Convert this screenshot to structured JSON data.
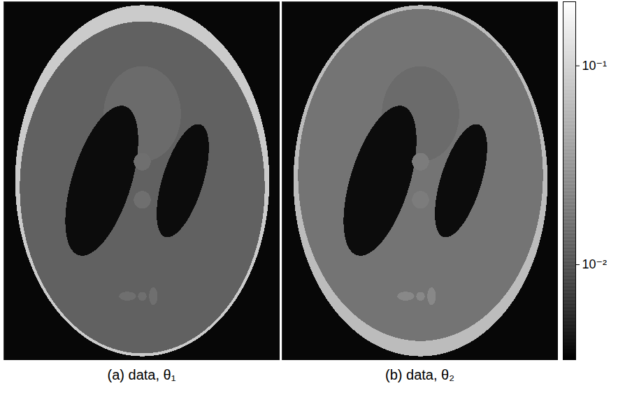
{
  "chart_data": {
    "type": "heatmap",
    "tick_labels": false,
    "panels": [
      {
        "caption": "(a) data, θ₁",
        "xlim": [
          -0.75,
          0.75
        ],
        "ylim": [
          -0.94,
          0.94
        ],
        "background": 0.0037,
        "ellipses": [
          {
            "cx": 0,
            "cy": 0,
            "rx": 0.69,
            "ry": 0.92,
            "angle": 0,
            "value": 0.09
          },
          {
            "cx": 0,
            "cy": -0.035,
            "rx": 0.665,
            "ry": 0.87,
            "angle": 0,
            "value": 0.016
          },
          {
            "cx": 0,
            "cy": 0.35,
            "rx": 0.21,
            "ry": 0.25,
            "angle": 0,
            "value": 0.019
          },
          {
            "cx": 0.22,
            "cy": 0,
            "rx": 0.11,
            "ry": 0.31,
            "angle": -18,
            "value": 0.004
          },
          {
            "cx": -0.22,
            "cy": 0,
            "rx": 0.16,
            "ry": 0.41,
            "angle": -18,
            "value": 0.004
          },
          {
            "cx": 0,
            "cy": 0.1,
            "rx": 0.046,
            "ry": 0.046,
            "angle": 0,
            "value": 0.02
          },
          {
            "cx": 0,
            "cy": -0.1,
            "rx": 0.046,
            "ry": 0.046,
            "angle": 0,
            "value": 0.02
          },
          {
            "cx": -0.08,
            "cy": -0.605,
            "rx": 0.046,
            "ry": 0.023,
            "angle": 0,
            "value": 0.02
          },
          {
            "cx": 0,
            "cy": -0.606,
            "rx": 0.023,
            "ry": 0.023,
            "angle": 0,
            "value": 0.02
          },
          {
            "cx": 0.06,
            "cy": -0.605,
            "rx": 0.023,
            "ry": 0.046,
            "angle": 0,
            "value": 0.02
          }
        ]
      },
      {
        "caption": "(b) data, θ₂",
        "xlim": [
          -0.75,
          0.75
        ],
        "ylim": [
          -0.94,
          0.94
        ],
        "background": 0.0037,
        "ellipses": [
          {
            "cx": 0,
            "cy": 0,
            "rx": 0.69,
            "ry": 0.92,
            "angle": 0,
            "value": 0.07
          },
          {
            "cx": 0,
            "cy": 0.03,
            "rx": 0.665,
            "ry": 0.87,
            "angle": 0,
            "value": 0.022
          },
          {
            "cx": 0,
            "cy": 0.35,
            "rx": 0.21,
            "ry": 0.25,
            "angle": 0,
            "value": 0.019
          },
          {
            "cx": 0.22,
            "cy": 0,
            "rx": 0.11,
            "ry": 0.31,
            "angle": -18,
            "value": 0.004
          },
          {
            "cx": -0.22,
            "cy": 0,
            "rx": 0.16,
            "ry": 0.41,
            "angle": -18,
            "value": 0.004
          },
          {
            "cx": 0,
            "cy": 0.1,
            "rx": 0.046,
            "ry": 0.046,
            "angle": 0,
            "value": 0.025
          },
          {
            "cx": 0,
            "cy": -0.1,
            "rx": 0.046,
            "ry": 0.046,
            "angle": 0,
            "value": 0.025
          },
          {
            "cx": -0.08,
            "cy": -0.605,
            "rx": 0.046,
            "ry": 0.023,
            "angle": 0,
            "value": 0.03
          },
          {
            "cx": 0,
            "cy": -0.606,
            "rx": 0.023,
            "ry": 0.023,
            "angle": 0,
            "value": 0.03
          },
          {
            "cx": 0.06,
            "cy": -0.605,
            "rx": 0.023,
            "ry": 0.046,
            "angle": 0,
            "value": 0.03
          }
        ]
      }
    ],
    "colorbar": {
      "log": true,
      "range": [
        0.0033,
        0.21
      ],
      "ticks": [
        {
          "value": 0.01,
          "label": "10⁻²"
        },
        {
          "value": 0.1,
          "label": "10⁻¹"
        }
      ],
      "colors": [
        "#000000",
        "#ffffff"
      ]
    }
  }
}
